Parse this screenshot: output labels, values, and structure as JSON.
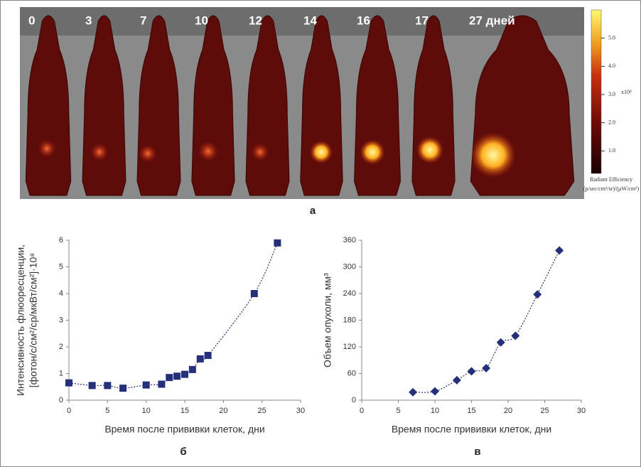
{
  "image_panel": {
    "labels": [
      "0",
      "3",
      "7",
      "10",
      "12",
      "14",
      "16",
      "17",
      "27 дней"
    ],
    "caption": "а",
    "colorbar": {
      "clim": [
        0.2,
        6.0
      ],
      "ticks": [
        {
          "value": 1,
          "label": "1.0"
        },
        {
          "value": 2,
          "label": "2.0"
        },
        {
          "value": 3,
          "label": "3.0"
        },
        {
          "value": 4,
          "label": "4.0"
        },
        {
          "value": 5,
          "label": "5.0"
        }
      ],
      "multiplier": "x10⁸",
      "title": "Radiant Efficiency",
      "units": "(p/sec/cm²/sr)/(µW/cm²)"
    }
  },
  "chart_data": [
    {
      "type": "scatter",
      "caption": "б",
      "marker": "square",
      "color": "#262f7a",
      "x_label": "Время после прививки клеток, дни",
      "y_label": [
        "Интенсивность флюоресценции,",
        "[фотон/с/см²/ср/мкВт/см²]·10⁸"
      ],
      "x": [
        0,
        3,
        5,
        7,
        10,
        12,
        13,
        14,
        15,
        16,
        17,
        18,
        24,
        27
      ],
      "values": [
        0.65,
        0.55,
        0.55,
        0.45,
        0.57,
        0.6,
        0.85,
        0.9,
        0.97,
        1.15,
        1.55,
        1.68,
        4.0,
        5.9
      ],
      "xlim": [
        0,
        30
      ],
      "xticks": [
        0,
        5,
        10,
        15,
        20,
        25,
        30
      ],
      "ylim": [
        0,
        6
      ],
      "yticks": [
        0,
        1,
        2,
        3,
        4,
        5,
        6
      ]
    },
    {
      "type": "scatter",
      "caption": "в",
      "marker": "diamond",
      "color": "#262f7a",
      "x_label": "Время после прививки клеток, дни",
      "y_label": [
        "Объем опухоли, мм³"
      ],
      "x": [
        7,
        10,
        13,
        15,
        17,
        19,
        21,
        24,
        27
      ],
      "values": [
        18,
        20,
        45,
        65,
        72,
        130,
        145,
        238,
        337
      ],
      "xlim": [
        0,
        30
      ],
      "xticks": [
        0,
        5,
        10,
        15,
        20,
        25,
        30
      ],
      "ylim": [
        0,
        360
      ],
      "yticks": [
        0,
        60,
        120,
        180,
        240,
        300,
        360
      ]
    }
  ]
}
